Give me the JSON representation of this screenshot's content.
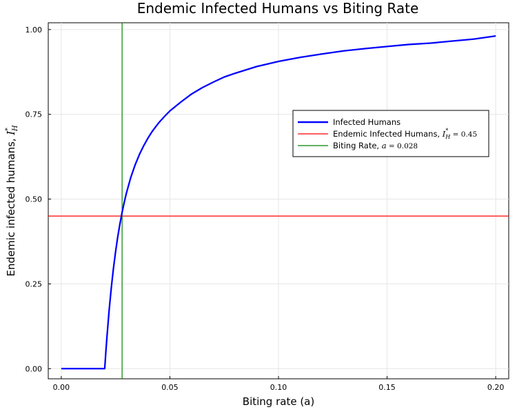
{
  "chart_data": {
    "type": "line",
    "title": "Endemic Infected Humans vs Biting Rate",
    "xlabel": "Biting rate (a)",
    "ylabel": "Endemic infected humans, ",
    "ylabel_math": "I",
    "ylabel_sup": "*",
    "ylabel_sub": "H",
    "xlim": [
      -0.006,
      0.206
    ],
    "ylim": [
      -0.03,
      1.02
    ],
    "x_ticks": [
      0.0,
      0.05,
      0.1,
      0.15,
      0.2
    ],
    "x_tick_labels": [
      "0.00",
      "0.05",
      "0.10",
      "0.15",
      "0.20"
    ],
    "y_ticks": [
      0.0,
      0.25,
      0.5,
      0.75,
      1.0
    ],
    "y_tick_labels": [
      "0.00",
      "0.25",
      "0.50",
      "0.75",
      "1.00"
    ],
    "grid": true,
    "legend_position": "right",
    "series": [
      {
        "name": "Infected Humans",
        "color": "#0000ff",
        "x": [
          0.0,
          0.005,
          0.01,
          0.015,
          0.02,
          0.0205,
          0.021,
          0.022,
          0.023,
          0.024,
          0.025,
          0.026,
          0.027,
          0.028,
          0.029,
          0.03,
          0.032,
          0.034,
          0.036,
          0.038,
          0.04,
          0.042,
          0.045,
          0.048,
          0.05,
          0.055,
          0.06,
          0.065,
          0.07,
          0.075,
          0.08,
          0.09,
          0.1,
          0.11,
          0.12,
          0.13,
          0.14,
          0.15,
          0.16,
          0.17,
          0.18,
          0.19,
          0.2
        ],
        "y": [
          0.0,
          0.0,
          0.0,
          0.0,
          0.0,
          0.048,
          0.092,
          0.17,
          0.237,
          0.295,
          0.345,
          0.389,
          0.427,
          0.461,
          0.491,
          0.518,
          0.564,
          0.601,
          0.632,
          0.658,
          0.681,
          0.701,
          0.726,
          0.747,
          0.76,
          0.786,
          0.81,
          0.829,
          0.845,
          0.86,
          0.871,
          0.891,
          0.906,
          0.918,
          0.928,
          0.937,
          0.944,
          0.95,
          0.956,
          0.96,
          0.966,
          0.972,
          0.981
        ]
      },
      {
        "name": "Endemic Infected Humans, ",
        "name_math": "I",
        "name_sup": "*",
        "name_sub": "H",
        "name_rest": " = 0.45",
        "color": "#ff0000",
        "type": "hline",
        "y": 0.45
      },
      {
        "name": "Biting Rate, ",
        "name_math": "a",
        "name_rest": " = 0.028",
        "color": "#008000",
        "type": "vline",
        "x": 0.028
      }
    ]
  }
}
